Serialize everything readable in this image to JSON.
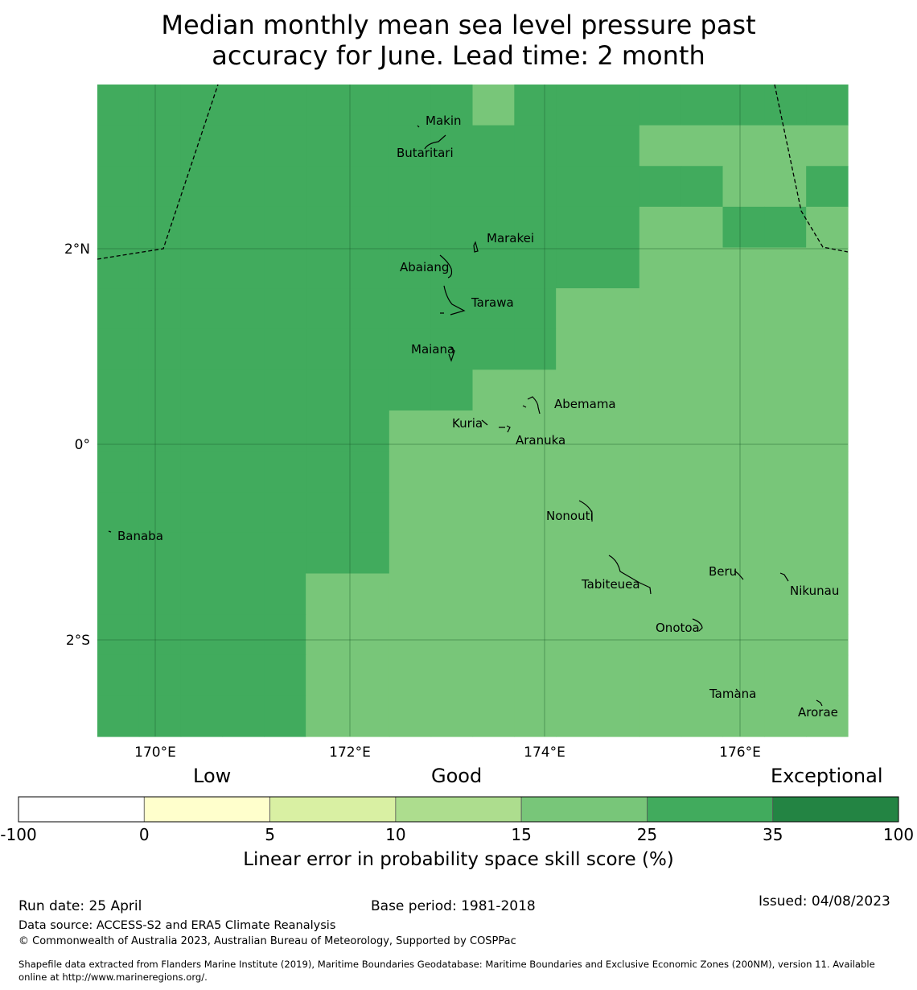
{
  "title_lines": [
    "Median monthly mean sea level pressure past",
    "accuracy for June. Lead time: 2 month"
  ],
  "map": {
    "lon_ticks": [
      "170°E",
      "172°E",
      "174°E",
      "176°E"
    ],
    "lat_ticks": [
      "2°N",
      "0°",
      "2°S"
    ],
    "locations": [
      "Makin",
      "Butaritari",
      "Marakei",
      "Abaiang",
      "Tarawa",
      "Maiana",
      "Abemama",
      "Kuria",
      "Aranuka",
      "Banaba",
      "Nonouti",
      "Tabiteuea",
      "Beru",
      "Nikunau",
      "Onotoa",
      "Tamana",
      "Arorae"
    ],
    "colors": {
      "good_light": "#78c679",
      "good_dark": "#41ab5d"
    },
    "cells": [
      [
        2,
        2,
        2,
        2,
        2,
        2,
        2,
        2,
        2,
        1,
        2,
        2,
        2,
        2,
        2,
        2,
        2,
        2
      ],
      [
        2,
        2,
        2,
        2,
        2,
        2,
        2,
        2,
        2,
        2,
        2,
        2,
        2,
        1,
        1,
        1,
        1,
        1
      ],
      [
        2,
        2,
        2,
        2,
        2,
        2,
        2,
        2,
        2,
        2,
        2,
        2,
        2,
        2,
        2,
        1,
        1,
        2
      ],
      [
        2,
        2,
        2,
        2,
        2,
        2,
        2,
        2,
        2,
        2,
        2,
        2,
        2,
        1,
        1,
        2,
        2,
        1
      ],
      [
        2,
        2,
        2,
        2,
        2,
        2,
        2,
        2,
        2,
        2,
        2,
        2,
        2,
        1,
        1,
        1,
        1,
        1
      ],
      [
        2,
        2,
        2,
        2,
        2,
        2,
        2,
        2,
        2,
        2,
        2,
        1,
        1,
        1,
        1,
        1,
        1,
        1
      ],
      [
        2,
        2,
        2,
        2,
        2,
        2,
        2,
        2,
        2,
        2,
        2,
        1,
        1,
        1,
        1,
        1,
        1,
        1
      ],
      [
        2,
        2,
        2,
        2,
        2,
        2,
        2,
        2,
        2,
        1,
        1,
        1,
        1,
        1,
        1,
        1,
        1,
        1
      ],
      [
        2,
        2,
        2,
        2,
        2,
        2,
        2,
        1,
        1,
        1,
        1,
        1,
        1,
        1,
        1,
        1,
        1,
        1
      ],
      [
        2,
        2,
        2,
        2,
        2,
        2,
        2,
        1,
        1,
        1,
        1,
        1,
        1,
        1,
        1,
        1,
        1,
        1
      ],
      [
        2,
        2,
        2,
        2,
        2,
        2,
        2,
        1,
        1,
        1,
        1,
        1,
        1,
        1,
        1,
        1,
        1,
        1
      ],
      [
        2,
        2,
        2,
        2,
        2,
        2,
        2,
        1,
        1,
        1,
        1,
        1,
        1,
        1,
        1,
        1,
        1,
        1
      ],
      [
        2,
        2,
        2,
        2,
        2,
        1,
        1,
        1,
        1,
        1,
        1,
        1,
        1,
        1,
        1,
        1,
        1,
        1
      ],
      [
        2,
        2,
        2,
        2,
        2,
        1,
        1,
        1,
        1,
        1,
        1,
        1,
        1,
        1,
        1,
        1,
        1,
        1
      ],
      [
        2,
        2,
        2,
        2,
        2,
        1,
        1,
        1,
        1,
        1,
        1,
        1,
        1,
        1,
        1,
        1,
        1,
        1
      ],
      [
        2,
        2,
        2,
        2,
        2,
        1,
        1,
        1,
        1,
        1,
        1,
        1,
        1,
        1,
        1,
        1,
        1,
        1
      ]
    ]
  },
  "colorbar": {
    "categories": [
      "Low",
      "Good",
      "Exceptional"
    ],
    "bins": [
      {
        "color": "#ffffff"
      },
      {
        "color": "#ffffcc"
      },
      {
        "color": "#d9f0a3"
      },
      {
        "color": "#addd8e"
      },
      {
        "color": "#78c679"
      },
      {
        "color": "#41ab5d"
      },
      {
        "color": "#238443"
      }
    ],
    "tick_labels": [
      "-100",
      "0",
      "5",
      "10",
      "15",
      "25",
      "35",
      "100"
    ],
    "title": "Linear error in probability space skill score (%)"
  },
  "footer": {
    "run_date": "Run date: 25 April",
    "base_period": "Base period: 1981-2018",
    "issued": "Issued: 04/08/2023",
    "data_source": "Data source: ACCESS-S2 and ERA5 Climate Reanalysis",
    "copyright": "© Commonwealth of Australia 2023, Australian Bureau of Meteorology, Supported by COSPPac",
    "shapefile_line1": "Shapefile data extracted from Flanders Marine Institute (2019), Maritime Boundaries Geodatabase: Maritime Boundaries and Exclusive Economic Zones (200NM), version 11. Available",
    "shapefile_line2": "online at http://www.marineregions.org/."
  }
}
